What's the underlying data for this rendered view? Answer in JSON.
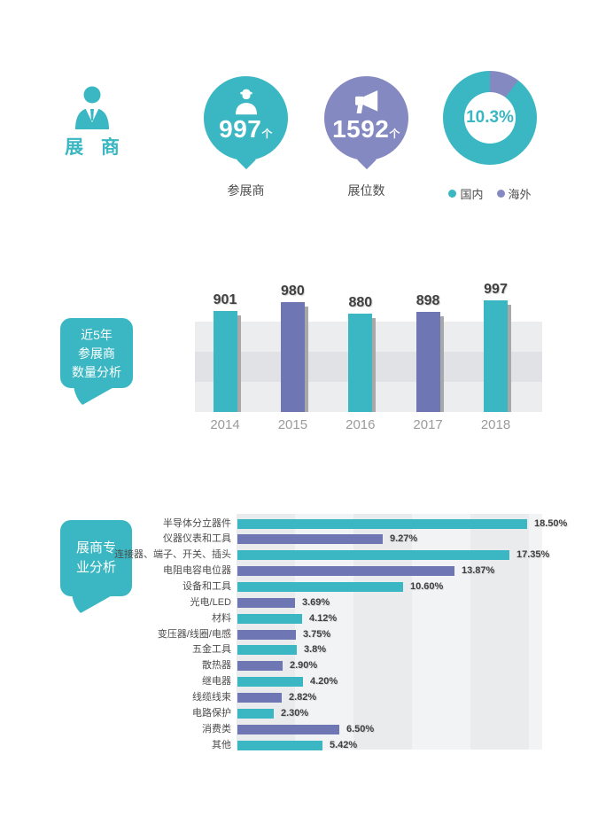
{
  "palette": {
    "teal": "#3ab7c2",
    "purple_light": "#8589c1",
    "purple_dark": "#6e76b4",
    "value_text": "#404040",
    "axis_text": "#9b9b9b",
    "label_text": "#4d4d4d"
  },
  "header": {
    "section_title": "展 商",
    "stats": [
      {
        "icon": "person-badge",
        "value": "997",
        "unit": "个",
        "label": "参展商",
        "color": "#3ab7c2"
      },
      {
        "icon": "megaphone",
        "value": "1592",
        "unit": "个",
        "label": "展位数",
        "color": "#8589c1"
      }
    ]
  },
  "yearly": {
    "bubble_lines": [
      "近5年",
      "参展商",
      "数量分析"
    ]
  },
  "specialty": {
    "bubble_lines": [
      "展商专",
      "业分析"
    ]
  },
  "chart_data": [
    {
      "id": "domestic-overseas-donut",
      "type": "pie",
      "labels": [
        "国内",
        "海外"
      ],
      "values": [
        89.7,
        10.3
      ],
      "colors": [
        "#3ab7c2",
        "#8589c1"
      ],
      "center_label": "10.3%",
      "legend_position": "bottom"
    },
    {
      "id": "yearly-exhibitors",
      "type": "bar",
      "title": "近5年参展商数量分析",
      "categories": [
        "2014",
        "2015",
        "2016",
        "2017",
        "2018"
      ],
      "values": [
        901,
        980,
        880,
        898,
        997
      ],
      "colors": [
        "#3ab7c2",
        "#6e76b4",
        "#3ab7c2",
        "#6e76b4",
        "#3ab7c2"
      ],
      "ylim": [
        0,
        1050
      ],
      "grid": "horizontal-bands",
      "data_labels": true
    },
    {
      "id": "specialty-distribution",
      "type": "bar",
      "orientation": "horizontal",
      "title": "展商专业分析",
      "categories": [
        "半导体分立器件",
        "仪器仪表和工具",
        "连接器、端子、开关、插头",
        "电阻电容电位器",
        "设备和工具",
        "光电/LED",
        "材料",
        "变压器/线圈/电感",
        "五金工具",
        "散热器",
        "继电器",
        "线缆线束",
        "电路保护",
        "消费类",
        "其他"
      ],
      "values": [
        18.5,
        9.27,
        17.35,
        13.87,
        10.6,
        3.69,
        4.12,
        3.75,
        3.8,
        2.9,
        4.2,
        2.82,
        2.3,
        6.5,
        5.42
      ],
      "display_values": [
        "18.50%",
        "9.27%",
        "17.35%",
        "13.87%",
        "10.60%",
        "3.69%",
        "4.12%",
        "3.75%",
        "3.8%",
        "2.90%",
        "4.20%",
        "2.82%",
        "2.30%",
        "6.50%",
        "5.42%"
      ],
      "colors_alternate": [
        "#3ab7c2",
        "#6e76b4"
      ],
      "xlim": [
        0,
        19.5
      ],
      "grid": "vertical-bands",
      "data_labels": true
    }
  ]
}
